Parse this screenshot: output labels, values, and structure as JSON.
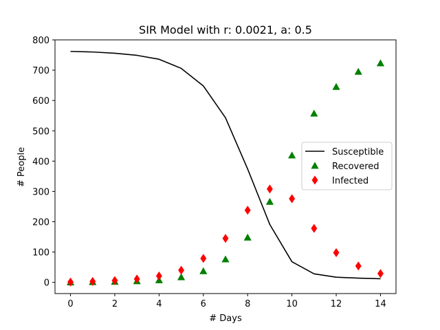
{
  "chart_data": {
    "type": "line",
    "title": "SIR Model with r: 0.0021, a: 0.5",
    "xlabel": "# Days",
    "ylabel": "# People",
    "xlim": [
      -0.7,
      14.7
    ],
    "ylim": [
      -37,
      800
    ],
    "xticks": [
      0,
      2,
      4,
      6,
      8,
      10,
      12,
      14
    ],
    "yticks": [
      0,
      100,
      200,
      300,
      400,
      500,
      600,
      700,
      800
    ],
    "grid": false,
    "legend_position": "center-right",
    "x": [
      0,
      1,
      2,
      3,
      4,
      5,
      6,
      7,
      8,
      9,
      10,
      11,
      12,
      13,
      14
    ],
    "series": [
      {
        "name": "Susceptible",
        "style": "line",
        "color": "#000000",
        "values": [
          762,
          760,
          756,
          749,
          736,
          706,
          648,
          543,
          374,
          191,
          68,
          28,
          17,
          14,
          12
        ]
      },
      {
        "name": "Recovered",
        "style": "triangle-marker",
        "color": "#008000",
        "values": [
          0,
          1,
          2,
          4,
          7,
          17,
          37,
          76,
          148,
          266,
          419,
          557,
          645,
          695,
          723
        ]
      },
      {
        "name": "Infected",
        "style": "diamond-marker",
        "color": "#ff0000",
        "values": [
          1,
          3,
          6,
          11,
          21,
          40,
          79,
          145,
          238,
          308,
          276,
          178,
          98,
          54,
          29
        ]
      }
    ]
  }
}
